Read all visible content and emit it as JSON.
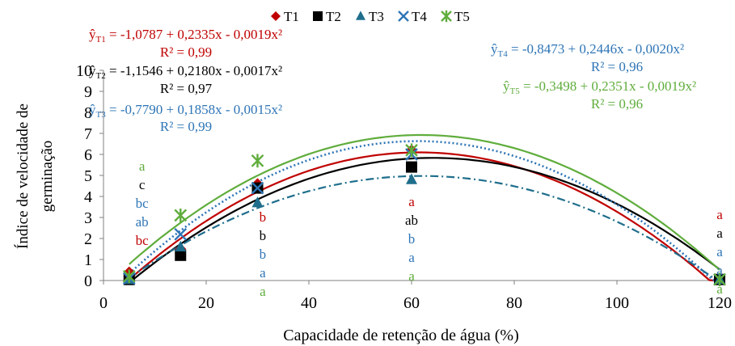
{
  "chart_data": {
    "type": "scatter",
    "xlabel": "Capacidade de retenção de água (%)",
    "ylabel_lines": [
      "Índice de velocidade de",
      "germinação"
    ],
    "xlim": [
      0,
      120
    ],
    "ylim": [
      0,
      10
    ],
    "x_ticks": [
      "0",
      "20",
      "40",
      "60",
      "80",
      "100",
      "120"
    ],
    "y_ticks": [
      "0",
      "1",
      "2",
      "3",
      "4",
      "5",
      "6",
      "7",
      "8",
      "9",
      "10"
    ],
    "x": [
      5,
      15,
      30,
      60,
      120
    ],
    "series": [
      {
        "name": "T1",
        "color": "#c00000",
        "marker": "diamond",
        "line": "solid",
        "values": [
          0.4,
          1.5,
          4.6,
          6.2,
          0.05
        ],
        "equation": "-1,0787 + 0,2335x - 0,0019x²",
        "r2": "R² = 0,99",
        "letters": [
          "bc",
          "b",
          "a",
          "a"
        ]
      },
      {
        "name": "T2",
        "color": "#000000",
        "marker": "square",
        "line": "solid",
        "values": [
          0.05,
          1.2,
          4.4,
          5.4,
          0.05
        ],
        "equation": "-1,1546 + 0,2180x - 0,0017x²",
        "r2": "R² = 0,97",
        "letters": [
          "c",
          "b",
          "ab",
          "a"
        ]
      },
      {
        "name": "T3",
        "color": "#1f6e8c",
        "marker": "triangle",
        "line": "dashdot",
        "values": [
          0.05,
          1.6,
          3.7,
          4.8,
          0.05
        ],
        "equation": "-0,7790 + 0,1858x - 0,0015x²",
        "r2": "R² = 0,99",
        "letters": [
          "bc",
          "b",
          "b",
          "a"
        ]
      },
      {
        "name": "T4",
        "color": "#2e75b6",
        "marker": "x",
        "line": "dotted",
        "values": [
          0.1,
          2.2,
          4.4,
          6.0,
          0.05
        ],
        "equation": "-0,8473 + 0,2446x - 0,0020x²",
        "r2": "R² = 0,96",
        "letters": [
          "ab",
          "a",
          "a",
          "a"
        ]
      },
      {
        "name": "T5",
        "color": "#5fad3c",
        "marker": "star",
        "line": "solid",
        "values": [
          0.2,
          3.1,
          5.7,
          6.2,
          0.05
        ],
        "equation": "-0,3498 + 0,2351x - 0,0019x²",
        "r2": "R² = 0,96",
        "letters": [
          "a",
          "a",
          "a",
          "a"
        ]
      }
    ],
    "letter_columns": [
      {
        "x_label": "5",
        "letters": [
          "a",
          "c",
          "bc",
          "ab",
          "bc"
        ]
      },
      {
        "x_label": "30",
        "letters": [
          "b",
          "b",
          "b",
          "a",
          "a"
        ]
      },
      {
        "x_label": "60",
        "letters": [
          "a",
          "ab",
          "b",
          "a",
          "a"
        ]
      },
      {
        "x_label": "120",
        "letters": [
          "a",
          "a",
          "a",
          "a",
          "a"
        ]
      }
    ],
    "yhat_symbol": "ŷ",
    "legend_position": "top-center",
    "grid": false
  }
}
